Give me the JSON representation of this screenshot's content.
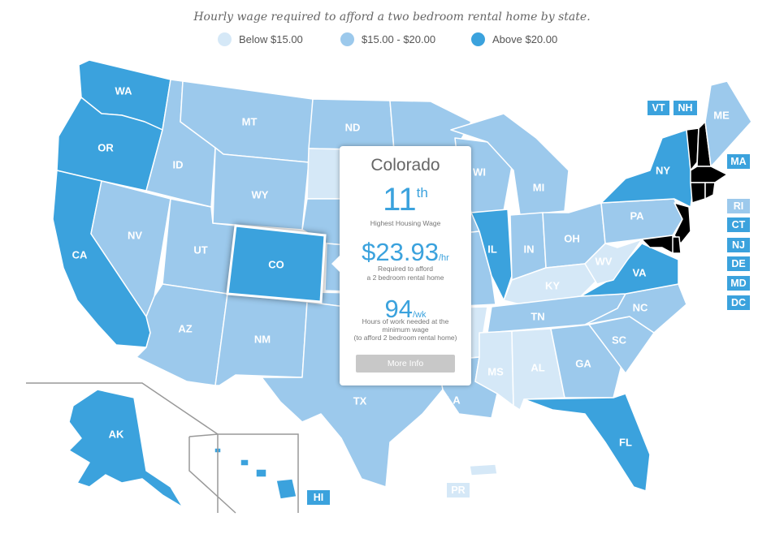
{
  "title": "Hourly wage required to afford a two bedroom rental home by state.",
  "legend": [
    {
      "label": "Below $15.00",
      "color": "#d5e8f7"
    },
    {
      "label": "$15.00 - $20.00",
      "color": "#9cc9ec"
    },
    {
      "label": "Above $20.00",
      "color": "#3ba2dd"
    }
  ],
  "colors": {
    "low": "#d5e8f7",
    "mid": "#9cc9ec",
    "high": "#3ba2dd",
    "border": "#ffffff"
  },
  "states": {
    "WA": "high",
    "OR": "high",
    "CA": "high",
    "ID": "mid",
    "NV": "mid",
    "UT": "mid",
    "AZ": "mid",
    "MT": "mid",
    "WY": "mid",
    "CO": "high",
    "NM": "mid",
    "ND": "mid",
    "SD": "low",
    "NE": "mid",
    "KS": "mid",
    "OK": "mid",
    "TX": "mid",
    "MN": "mid",
    "IA": "mid",
    "MO": "mid",
    "AR": "low",
    "LA": "mid",
    "WI": "mid",
    "IL": "high",
    "MI": "mid",
    "IN": "mid",
    "OH": "mid",
    "KY": "low",
    "TN": "mid",
    "MS": "low",
    "AL": "low",
    "GA": "mid",
    "FL": "high",
    "SC": "mid",
    "NC": "mid",
    "VA": "high",
    "WV": "low",
    "PA": "mid",
    "NY": "high",
    "ME": "mid",
    "AK": "high",
    "HI": "high",
    "PR": "low"
  },
  "labels": [
    "WA",
    "OR",
    "CA",
    "ID",
    "NV",
    "UT",
    "AZ",
    "MT",
    "WY",
    "CO",
    "NM",
    "ND",
    "TX",
    "WI",
    "IL",
    "MI",
    "IN",
    "OH",
    "KY",
    "TN",
    "MS",
    "AL",
    "GA",
    "FL",
    "SC",
    "NC",
    "VA",
    "WV",
    "PA",
    "NY",
    "ME",
    "LA",
    "AK"
  ],
  "small_states": [
    {
      "abbr": "VT",
      "tier": "high"
    },
    {
      "abbr": "NH",
      "tier": "high"
    },
    {
      "abbr": "MA",
      "tier": "high"
    },
    {
      "abbr": "RI",
      "tier": "mid"
    },
    {
      "abbr": "CT",
      "tier": "high"
    },
    {
      "abbr": "NJ",
      "tier": "high"
    },
    {
      "abbr": "DE",
      "tier": "high"
    },
    {
      "abbr": "MD",
      "tier": "high"
    },
    {
      "abbr": "DC",
      "tier": "high"
    },
    {
      "abbr": "HI",
      "tier": "high"
    },
    {
      "abbr": "PR",
      "tier": "low"
    }
  ],
  "popup": {
    "state": "Colorado",
    "rank": "11",
    "rank_suffix": "th",
    "rank_label": "Highest Housing Wage",
    "wage": "$23.93",
    "wage_unit": "/hr",
    "wage_label_1": "Required to afford",
    "wage_label_2": "a 2 bedroom rental home",
    "hours": "94",
    "hours_unit": "/wk",
    "hours_label_1": "Hours of work needed at the",
    "hours_label_2": "minimum wage",
    "hours_label_3": "(to afford 2 bedroom rental home)",
    "button": "More Info"
  }
}
